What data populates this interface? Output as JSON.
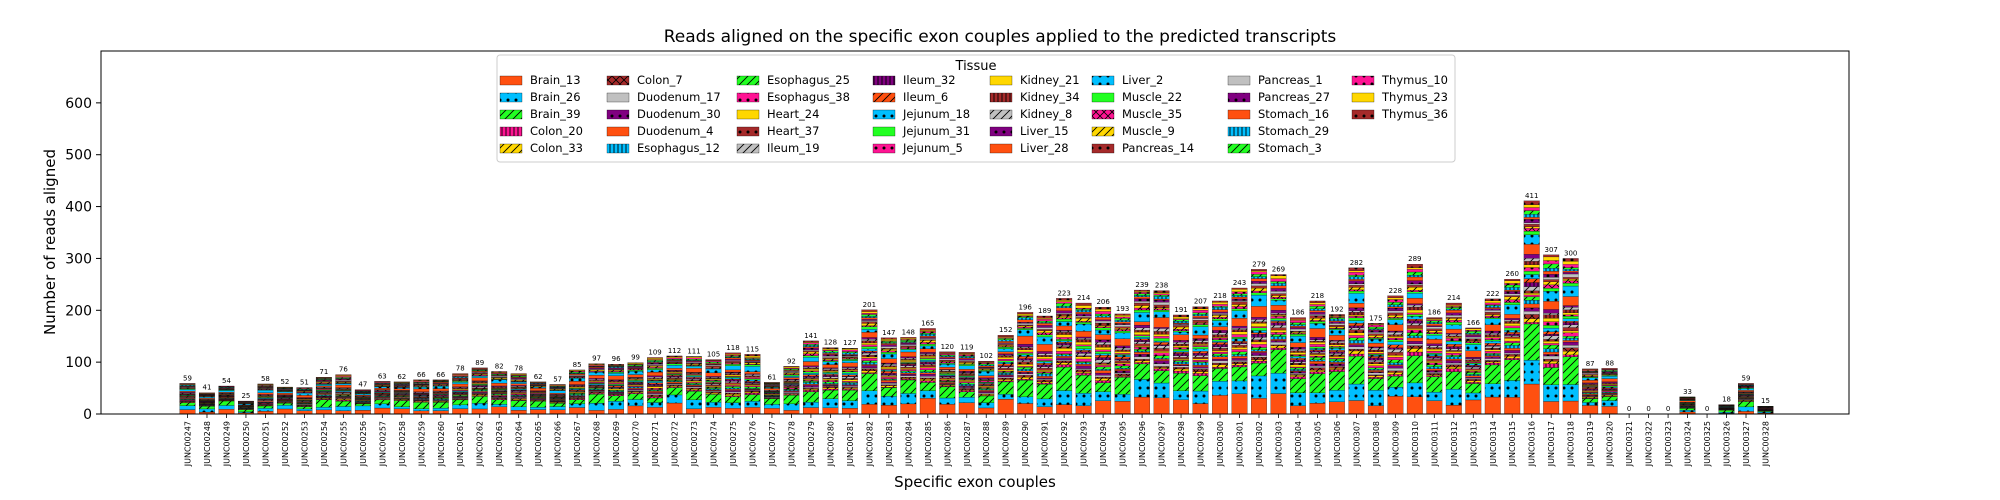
{
  "chart_data": {
    "type": "bar",
    "stacked": true,
    "title": "Reads aligned on the specific exon couples applied to the predicted transcripts",
    "xlabel": "Specific exon couples",
    "ylabel": "Number of reads aligned",
    "ylim": [
      0,
      700
    ],
    "yticks": [
      0,
      100,
      200,
      300,
      400,
      500,
      600
    ],
    "grid": false,
    "legend": {
      "title": "Tissue",
      "placement": "top-center",
      "columns": 8
    },
    "categories": [
      "JUNC00247",
      "JUNC00248",
      "JUNC00249",
      "JUNC00250",
      "JUNC00251",
      "JUNC00252",
      "JUNC00253",
      "JUNC00254",
      "JUNC00255",
      "JUNC00256",
      "JUNC00257",
      "JUNC00258",
      "JUNC00259",
      "JUNC00260",
      "JUNC00261",
      "JUNC00262",
      "JUNC00263",
      "JUNC00264",
      "JUNC00265",
      "JUNC00266",
      "JUNC00267",
      "JUNC00268",
      "JUNC00269",
      "JUNC00270",
      "JUNC00271",
      "JUNC00272",
      "JUNC00273",
      "JUNC00274",
      "JUNC00275",
      "JUNC00276",
      "JUNC00277",
      "JUNC00278",
      "JUNC00279",
      "JUNC00280",
      "JUNC00281",
      "JUNC00282",
      "JUNC00283",
      "JUNC00284",
      "JUNC00285",
      "JUNC00286",
      "JUNC00287",
      "JUNC00288",
      "JUNC00289",
      "JUNC00290",
      "JUNC00291",
      "JUNC00292",
      "JUNC00293",
      "JUNC00294",
      "JUNC00295",
      "JUNC00296",
      "JUNC00297",
      "JUNC00298",
      "JUNC00299",
      "JUNC00300",
      "JUNC00301",
      "JUNC00302",
      "JUNC00303",
      "JUNC00304",
      "JUNC00305",
      "JUNC00306",
      "JUNC00307",
      "JUNC00308",
      "JUNC00309",
      "JUNC00310",
      "JUNC00311",
      "JUNC00312",
      "JUNC00313",
      "JUNC00314",
      "JUNC00315",
      "JUNC00316",
      "JUNC00317",
      "JUNC00318",
      "JUNC00319",
      "JUNC00320",
      "JUNC00321",
      "JUNC00322",
      "JUNC00323",
      "JUNC00324",
      "JUNC00325",
      "JUNC00326",
      "JUNC00327",
      "JUNC00328"
    ],
    "totals": [
      59,
      41,
      54,
      25,
      58,
      52,
      51,
      71,
      76,
      47,
      63,
      62,
      66,
      66,
      78,
      89,
      82,
      78,
      62,
      57,
      85,
      97,
      96,
      99,
      109,
      112,
      111,
      105,
      118,
      115,
      61,
      92,
      141,
      128,
      127,
      201,
      147,
      148,
      165,
      120,
      119,
      102,
      152,
      196,
      189,
      223,
      214,
      206,
      193,
      239,
      238,
      191,
      207,
      218,
      243,
      279,
      269,
      186,
      218,
      192,
      282,
      175,
      228,
      289,
      186,
      214,
      166,
      222,
      260,
      411,
      307,
      300,
      87,
      88,
      0,
      0,
      0,
      33,
      0,
      18,
      59,
      15
    ],
    "series": [
      {
        "name": "Brain_13",
        "color": "#ff5010",
        "pattern": "none"
      },
      {
        "name": "Brain_26",
        "color": "#00bfff",
        "pattern": "dot"
      },
      {
        "name": "Brain_39",
        "color": "#22ff22",
        "pattern": "slash"
      },
      {
        "name": "Colon_20",
        "color": "#ff1493",
        "pattern": "bar"
      },
      {
        "name": "Colon_33",
        "color": "#ffd700",
        "pattern": "slash"
      },
      {
        "name": "Colon_7",
        "color": "#a52a2a",
        "pattern": "cross"
      },
      {
        "name": "Duodenum_17",
        "color": "#c0c0c0",
        "pattern": "none"
      },
      {
        "name": "Duodenum_30",
        "color": "#800080",
        "pattern": "dot"
      },
      {
        "name": "Duodenum_4",
        "color": "#ff5010",
        "pattern": "none"
      },
      {
        "name": "Esophagus_12",
        "color": "#00bfff",
        "pattern": "bar"
      },
      {
        "name": "Esophagus_25",
        "color": "#22ff22",
        "pattern": "slash"
      },
      {
        "name": "Esophagus_38",
        "color": "#ff1493",
        "pattern": "dot"
      },
      {
        "name": "Heart_24",
        "color": "#ffd700",
        "pattern": "none"
      },
      {
        "name": "Heart_37",
        "color": "#a52a2a",
        "pattern": "dot"
      },
      {
        "name": "Ileum_19",
        "color": "#c0c0c0",
        "pattern": "slash"
      },
      {
        "name": "Ileum_32",
        "color": "#800080",
        "pattern": "bar"
      },
      {
        "name": "Ileum_6",
        "color": "#ff5010",
        "pattern": "slash"
      },
      {
        "name": "Jejunum_18",
        "color": "#00bfff",
        "pattern": "dot"
      },
      {
        "name": "Jejunum_31",
        "color": "#22ff22",
        "pattern": "none"
      },
      {
        "name": "Jejunum_5",
        "color": "#ff1493",
        "pattern": "dot"
      },
      {
        "name": "Kidney_21",
        "color": "#ffd700",
        "pattern": "none"
      },
      {
        "name": "Kidney_34",
        "color": "#a52a2a",
        "pattern": "bar"
      },
      {
        "name": "Kidney_8",
        "color": "#c0c0c0",
        "pattern": "slash"
      },
      {
        "name": "Liver_15",
        "color": "#800080",
        "pattern": "dot"
      },
      {
        "name": "Liver_28",
        "color": "#ff5010",
        "pattern": "none"
      },
      {
        "name": "Liver_2",
        "color": "#00bfff",
        "pattern": "dot"
      },
      {
        "name": "Muscle_22",
        "color": "#22ff22",
        "pattern": "none"
      },
      {
        "name": "Muscle_35",
        "color": "#ff1493",
        "pattern": "cross"
      },
      {
        "name": "Muscle_9",
        "color": "#ffd700",
        "pattern": "slash"
      },
      {
        "name": "Pancreas_14",
        "color": "#a52a2a",
        "pattern": "dot"
      },
      {
        "name": "Pancreas_1",
        "color": "#c0c0c0",
        "pattern": "none"
      },
      {
        "name": "Pancreas_27",
        "color": "#800080",
        "pattern": "dot"
      },
      {
        "name": "Stomach_16",
        "color": "#ff5010",
        "pattern": "none"
      },
      {
        "name": "Stomach_29",
        "color": "#00bfff",
        "pattern": "bar"
      },
      {
        "name": "Stomach_3",
        "color": "#22ff22",
        "pattern": "slash"
      },
      {
        "name": "Thymus_10",
        "color": "#ff1493",
        "pattern": "dot"
      },
      {
        "name": "Thymus_23",
        "color": "#ffd700",
        "pattern": "none"
      },
      {
        "name": "Thymus_36",
        "color": "#a52a2a",
        "pattern": "dot"
      }
    ]
  }
}
